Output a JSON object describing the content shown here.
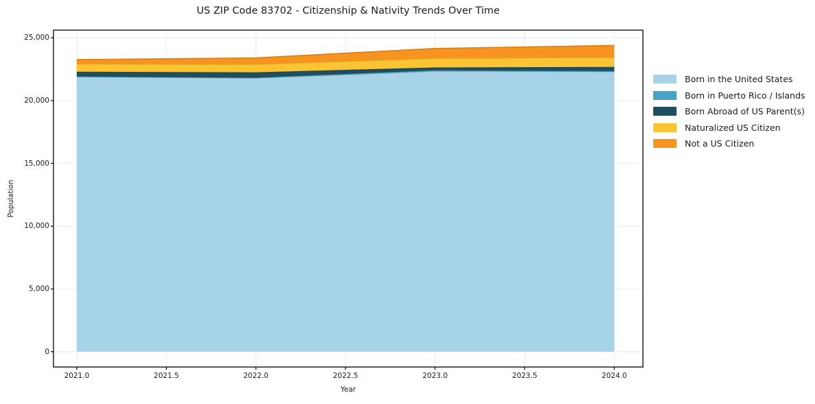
{
  "figure": {
    "background": "#ffffff",
    "spine_color": "#000000",
    "grid_color": "#eaeaea",
    "text_color": "#1a1a1a"
  },
  "chart_data": {
    "type": "area",
    "stacked": true,
    "title": "US ZIP Code 83702 - Citizenship & Nativity Trends Over Time",
    "xlabel": "Year",
    "ylabel": "Population",
    "x": [
      2021,
      2022,
      2023,
      2024
    ],
    "series": [
      {
        "name": "Born in the United States",
        "color": "#a7d3e8",
        "values": [
          21900,
          21790,
          22330,
          22290
        ]
      },
      {
        "name": "Born in Puerto Rico / Islands",
        "color": "#46a5c6",
        "values": [
          15,
          30,
          80,
          60
        ]
      },
      {
        "name": "Born Abroad of US Parent(s)",
        "color": "#1f4e5f",
        "values": [
          385,
          430,
          230,
          330
        ]
      },
      {
        "name": "Naturalized US Citizen",
        "color": "#fcc433",
        "values": [
          620,
          635,
          730,
          765
        ]
      },
      {
        "name": "Not a US Citizen",
        "color": "#f7941f",
        "values": [
          345,
          510,
          780,
          945
        ]
      }
    ],
    "totals": [
      23265,
      23395,
      24150,
      24390
    ],
    "xlim": [
      2020.87,
      2024.16
    ],
    "ylim": [
      -1220,
      25610
    ],
    "xticks": [
      2021.0,
      2021.5,
      2022.0,
      2022.5,
      2023.0,
      2023.5,
      2024.0
    ],
    "xtick_labels": [
      "2021.0",
      "2021.5",
      "2022.0",
      "2022.5",
      "2023.0",
      "2023.5",
      "2024.0"
    ],
    "yticks": [
      0,
      5000,
      10000,
      15000,
      20000,
      25000
    ],
    "ytick_labels": [
      "0",
      "5,000",
      "10,000",
      "15,000",
      "20,000",
      "25,000"
    ],
    "grid": true,
    "legend_position": "right-outside"
  }
}
